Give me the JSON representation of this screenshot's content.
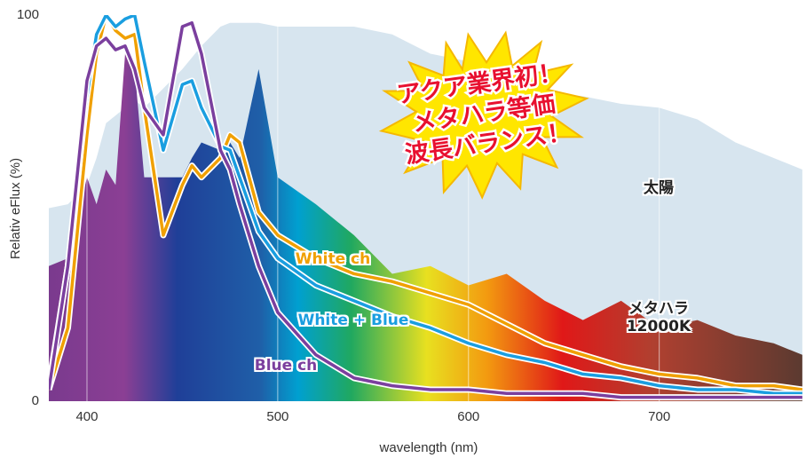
{
  "chart_data": {
    "type": "line",
    "x": [
      380,
      390,
      400,
      405,
      410,
      415,
      420,
      425,
      430,
      440,
      450,
      455,
      460,
      470,
      475,
      480,
      490,
      500,
      520,
      540,
      560,
      580,
      600,
      620,
      640,
      660,
      680,
      700,
      720,
      740,
      760,
      775
    ],
    "series": [
      {
        "name": "太陽",
        "style": "area",
        "color": "#c9dcea",
        "values": [
          50,
          51,
          56,
          63,
          72,
          74,
          76,
          78,
          76,
          81,
          86,
          89,
          92,
          97,
          98,
          98,
          98,
          97,
          97,
          97,
          95,
          90,
          88,
          83,
          80,
          79,
          77,
          76,
          73,
          67,
          63,
          60
        ]
      },
      {
        "name": "メタハラ 12000K",
        "style": "area",
        "color": "#1f5fa8",
        "values": [
          35,
          37,
          58,
          51,
          60,
          56,
          90,
          86,
          58,
          58,
          58,
          63,
          67,
          65,
          67,
          63,
          86,
          58,
          51,
          43,
          33,
          35,
          30,
          33,
          26,
          21,
          26,
          19,
          21,
          17,
          15,
          12
        ]
      },
      {
        "name": "White ch",
        "style": "line",
        "color": "#f0a000",
        "values": [
          3,
          19,
          69,
          90,
          100,
          96,
          94,
          95,
          76,
          43,
          56,
          61,
          58,
          63,
          69,
          67,
          49,
          43,
          37,
          33,
          31,
          28,
          25,
          20,
          15,
          12,
          9,
          7,
          6,
          4,
          4,
          3
        ]
      },
      {
        "name": "White + Blue",
        "style": "line",
        "color": "#1a9ee0",
        "values": [
          4,
          35,
          79,
          95,
          100,
          97,
          99,
          100,
          88,
          65,
          82,
          83,
          76,
          66,
          65,
          58,
          44,
          37,
          30,
          26,
          22,
          19,
          15,
          12,
          10,
          7,
          6,
          4,
          3,
          3,
          2,
          2
        ]
      },
      {
        "name": "Blue ch",
        "style": "line",
        "color": "#7b3f9e",
        "values": [
          3,
          35,
          83,
          92,
          94,
          91,
          92,
          86,
          76,
          69,
          97,
          98,
          90,
          65,
          60,
          51,
          35,
          23,
          12,
          6,
          4,
          3,
          3,
          2,
          2,
          2,
          1,
          1,
          1,
          1,
          1,
          1
        ]
      }
    ],
    "xlim": [
      380,
      776
    ],
    "ylim": [
      0,
      100
    ],
    "xticks": [
      400,
      500,
      600,
      700
    ],
    "yticks": [
      0,
      100
    ],
    "xlabel": "wavelength (nm)",
    "ylabel": "Relativ eFlux (%)",
    "annotation": [
      "アクア業界初！",
      "メタハラ等価",
      "波長バランス！"
    ],
    "grid": true
  }
}
